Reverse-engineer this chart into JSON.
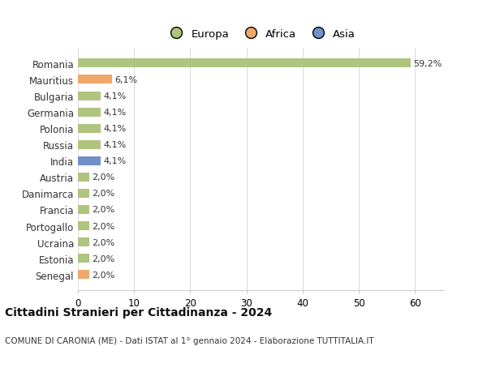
{
  "countries": [
    "Romania",
    "Mauritius",
    "Bulgaria",
    "Germania",
    "Polonia",
    "Russia",
    "India",
    "Austria",
    "Danimarca",
    "Francia",
    "Portogallo",
    "Ucraina",
    "Estonia",
    "Senegal"
  ],
  "values": [
    59.2,
    6.1,
    4.1,
    4.1,
    4.1,
    4.1,
    4.1,
    2.0,
    2.0,
    2.0,
    2.0,
    2.0,
    2.0,
    2.0
  ],
  "labels": [
    "59,2%",
    "6,1%",
    "4,1%",
    "4,1%",
    "4,1%",
    "4,1%",
    "4,1%",
    "2,0%",
    "2,0%",
    "2,0%",
    "2,0%",
    "2,0%",
    "2,0%",
    "2,0%"
  ],
  "colors": [
    "#aec47f",
    "#f0a868",
    "#aec47f",
    "#aec47f",
    "#aec47f",
    "#aec47f",
    "#7090c8",
    "#aec47f",
    "#aec47f",
    "#aec47f",
    "#aec47f",
    "#aec47f",
    "#aec47f",
    "#f0a868"
  ],
  "legend_labels": [
    "Europa",
    "Africa",
    "Asia"
  ],
  "legend_colors": [
    "#aec47f",
    "#f0a868",
    "#7090c8"
  ],
  "title": "Cittadini Stranieri per Cittadinanza - 2024",
  "subtitle": "COMUNE DI CARONIA (ME) - Dati ISTAT al 1° gennaio 2024 - Elaborazione TUTTITALIA.IT",
  "xlim": [
    0,
    65
  ],
  "xticks": [
    0,
    10,
    20,
    30,
    40,
    50,
    60
  ],
  "bg_color": "#ffffff",
  "grid_color": "#dddddd",
  "bar_height": 0.55
}
